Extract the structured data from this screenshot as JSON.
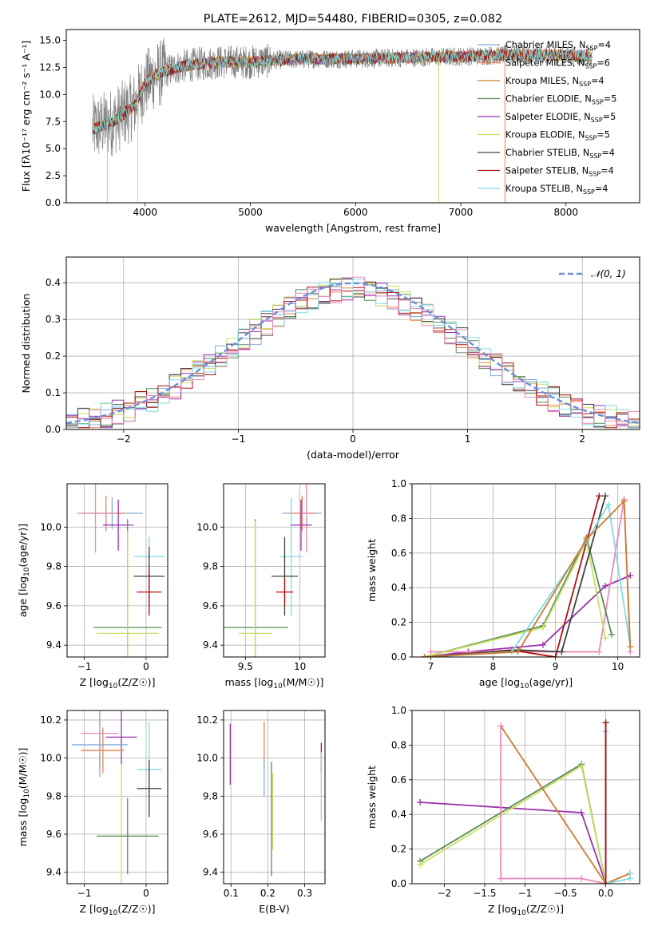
{
  "chart_data": [
    {
      "id": "spectrum",
      "type": "line",
      "title": "PLATE=2612, MJD=54480, FIBERID=0305, z=0.082",
      "xlabel": "wavelength [Angstrom, rest frame]",
      "ylabel": "Flux [fλ10⁻¹⁷ erg cm⁻² s⁻¹ A⁻¹]",
      "xlim": [
        3250,
        8700
      ],
      "ylim": [
        0,
        16
      ],
      "xticks": [
        4000,
        5000,
        6000,
        7000,
        8000
      ],
      "yticks": [
        0.0,
        2.5,
        5.0,
        7.5,
        10.0,
        12.5,
        15.0
      ],
      "grid": false,
      "legend_position": "top-right",
      "observed": {
        "color": "#808080",
        "x_range": [
          3500,
          8250
        ],
        "continuum": [
          [
            3500,
            6.8
          ],
          [
            3700,
            7.5
          ],
          [
            3900,
            9.0
          ],
          [
            4000,
            11.0
          ],
          [
            4100,
            11.8
          ],
          [
            4300,
            12.5
          ],
          [
            4500,
            12.8
          ],
          [
            4700,
            13.0
          ],
          [
            5000,
            13.0
          ],
          [
            5300,
            13.2
          ],
          [
            5600,
            13.3
          ],
          [
            6000,
            13.3
          ],
          [
            6500,
            13.4
          ],
          [
            7000,
            13.5
          ],
          [
            7500,
            13.7
          ],
          [
            8000,
            13.6
          ],
          [
            8250,
            13.5
          ]
        ]
      },
      "series": [
        {
          "name": "Chabrier MILES, N_SSP=4",
          "label_pre": "Chabrier MILES, N",
          "label_sub": "SSP",
          "label_post": "=4",
          "color": "#7faedc"
        },
        {
          "name": "Salpeter MILES, N_SSP=6",
          "label_pre": "Salpeter MILES, N",
          "label_sub": "SSP",
          "label_post": "=6",
          "color": "#ee7f4f"
        },
        {
          "name": "Kroupa MILES, N_SSP=4",
          "label_pre": "Kroupa MILES, N",
          "label_sub": "SSP",
          "label_post": "=4",
          "color": "#cc7a30"
        },
        {
          "name": "Chabrier ELODIE, N_SSP=5",
          "label_pre": "Chabrier ELODIE, N",
          "label_sub": "SSP",
          "label_post": "=5",
          "color": "#5a8a5a"
        },
        {
          "name": "Salpeter ELODIE, N_SSP=5",
          "label_pre": "Salpeter ELODIE, N",
          "label_sub": "SSP",
          "label_post": "=5",
          "color": "#9b30b0"
        },
        {
          "name": "Kroupa ELODIE, N_SSP=5",
          "label_pre": "Kroupa ELODIE, N",
          "label_sub": "SSP",
          "label_post": "=5",
          "color": "#c8e060"
        },
        {
          "name": "Chabrier STELIB, N_SSP=4",
          "label_pre": "Chabrier STELIB, N",
          "label_sub": "SSP",
          "label_post": "=4",
          "color": "#404040"
        },
        {
          "name": "Salpeter STELIB, N_SSP=4",
          "label_pre": "Salpeter STELIB, N",
          "label_sub": "SSP",
          "label_post": "=4",
          "color": "#b01010"
        },
        {
          "name": "Kroupa STELIB, N_SSP=4",
          "label_pre": "Kroupa STELIB, N",
          "label_sub": "SSP",
          "label_post": "=4",
          "color": "#80dce0"
        }
      ],
      "absorption_dips": [
        {
          "x": 3640,
          "y_min": 0.0,
          "color": "#80dce0"
        },
        {
          "x": 3930,
          "y_min": 0.0,
          "color": "#c8e060"
        },
        {
          "x": 6790,
          "y_min": 0.0,
          "color": "#c8e060"
        },
        {
          "x": 7420,
          "y_min": 0.0,
          "color": "#ee7f4f"
        }
      ]
    },
    {
      "id": "residuals",
      "type": "histogram",
      "xlabel": "(data-model)/error",
      "ylabel": "Normed distribution",
      "xlim": [
        -2.5,
        2.5
      ],
      "ylim": [
        0,
        0.47
      ],
      "xticks": [
        -2,
        -1,
        0,
        1,
        2
      ],
      "yticks": [
        0.0,
        0.1,
        0.2,
        0.3,
        0.4
      ],
      "grid": true,
      "legend": {
        "label": "𝒩(0, 1)",
        "position": "top-right"
      },
      "bin_width": 0.1,
      "gaussian": {
        "mean": 0,
        "sigma": 1,
        "color": "#6a8fd8"
      },
      "histogram_colors": [
        "#7faedc",
        "#ee7f4f",
        "#5a8a5a",
        "#9b30b0",
        "#c8e060",
        "#404040",
        "#b01010",
        "#80dce0",
        "#e989b8"
      ]
    },
    {
      "id": "age-vs-Z",
      "type": "errorbar",
      "xlabel_pre": "Z [log",
      "xlabel_sub": "10",
      "xlabel_post": "(Z/Z☉)]",
      "ylabel_pre": "age  [log",
      "ylabel_sub": "10",
      "ylabel_post": "(age/yr)]",
      "xlim": [
        -1.28,
        0.35
      ],
      "ylim": [
        9.34,
        10.22
      ],
      "xticks": [
        -1,
        0
      ],
      "yticks": [
        9.4,
        9.6,
        9.8,
        10.0
      ],
      "grid": true,
      "points": [
        {
          "x": -0.55,
          "y": 10.07,
          "xerr": 0.5,
          "yerr": 0.08,
          "color": "#7faedc"
        },
        {
          "x": -0.65,
          "y": 10.07,
          "xerr": 0.3,
          "yerr": 0.09,
          "color": "#ee7f4f"
        },
        {
          "x": -0.82,
          "y": 10.07,
          "xerr": 0.3,
          "yerr": 0.2,
          "color": "#e989b8"
        },
        {
          "x": -0.45,
          "y": 10.01,
          "xerr": 0.25,
          "yerr": 0.13,
          "color": "#9b30b0"
        },
        {
          "x": -0.3,
          "y": 9.49,
          "xerr": 0.55,
          "yerr": 0.55,
          "color": "#5a8a5a"
        },
        {
          "x": -0.3,
          "y": 9.46,
          "xerr": 0.5,
          "yerr": 0.52,
          "color": "#c8e060"
        },
        {
          "x": 0.05,
          "y": 9.85,
          "xerr": 0.25,
          "yerr": 0.1,
          "color": "#80dce0"
        },
        {
          "x": 0.05,
          "y": 9.75,
          "xerr": 0.25,
          "yerr": 0.15,
          "color": "#404040"
        },
        {
          "x": 0.05,
          "y": 9.67,
          "xerr": 0.2,
          "yerr": 0.12,
          "color": "#b01010"
        }
      ]
    },
    {
      "id": "age-vs-mass",
      "type": "errorbar",
      "xlabel_pre": "mass [log",
      "xlabel_sub": "10",
      "xlabel_post": "(M/M☉)]",
      "xlim": [
        9.3,
        10.23
      ],
      "ylim": [
        9.34,
        10.22
      ],
      "xticks": [
        9.5,
        10.0
      ],
      "yticks": [
        9.4,
        9.6,
        9.8,
        10.0
      ],
      "grid": true,
      "points": [
        {
          "x": 10.02,
          "y": 10.07,
          "xerr": 0.18,
          "yerr": 0.08,
          "color": "#7faedc"
        },
        {
          "x": 10.02,
          "y": 10.07,
          "xerr": 0.12,
          "yerr": 0.09,
          "color": "#ee7f4f"
        },
        {
          "x": 10.06,
          "y": 10.07,
          "xerr": 0.05,
          "yerr": 0.2,
          "color": "#e989b8"
        },
        {
          "x": 10.01,
          "y": 10.01,
          "xerr": 0.1,
          "yerr": 0.13,
          "color": "#9b30b0"
        },
        {
          "x": 9.59,
          "y": 9.49,
          "xerr": 0.3,
          "yerr": 0.55,
          "color": "#5a8a5a"
        },
        {
          "x": 9.59,
          "y": 9.46,
          "xerr": 0.15,
          "yerr": 0.57,
          "color": "#c8e060"
        },
        {
          "x": 9.92,
          "y": 9.85,
          "xerr": 0.1,
          "yerr": 0.3,
          "color": "#80dce0"
        },
        {
          "x": 9.86,
          "y": 9.75,
          "xerr": 0.12,
          "yerr": 0.2,
          "color": "#404040"
        },
        {
          "x": 9.86,
          "y": 9.67,
          "xerr": 0.08,
          "yerr": 0.07,
          "color": "#b01010"
        }
      ]
    },
    {
      "id": "massweight-vs-age",
      "type": "line",
      "xlabel_pre": "age  [log",
      "xlabel_sub": "10",
      "xlabel_post": "(age/yr)]",
      "ylabel": "mass weight",
      "xlim": [
        6.7,
        10.35
      ],
      "ylim": [
        0,
        1
      ],
      "xticks": [
        7,
        8,
        9,
        10
      ],
      "yticks": [
        0.0,
        0.2,
        0.4,
        0.6,
        0.8,
        1.0
      ],
      "grid": true,
      "series": [
        {
          "color": "#9b30b0",
          "x": [
            6.9,
            7.6,
            8.8,
            9.8,
            10.2
          ],
          "y": [
            0.0,
            0.03,
            0.07,
            0.41,
            0.47
          ]
        },
        {
          "color": "#e989b8",
          "x": [
            7.0,
            9.7,
            10.1,
            10.2
          ],
          "y": [
            0.03,
            0.03,
            0.91,
            0.03
          ]
        },
        {
          "color": "#5a8a5a",
          "x": [
            6.9,
            8.8,
            9.5,
            9.9
          ],
          "y": [
            0.0,
            0.18,
            0.69,
            0.13
          ]
        },
        {
          "color": "#c8e060",
          "x": [
            6.9,
            8.8,
            9.5,
            9.8
          ],
          "y": [
            0.0,
            0.17,
            0.67,
            0.11
          ]
        },
        {
          "color": "#b01010",
          "x": [
            6.9,
            8.3,
            9.0,
            9.7
          ],
          "y": [
            0.0,
            0.04,
            0.0,
            0.93
          ]
        },
        {
          "color": "#404040",
          "x": [
            6.9,
            8.4,
            9.1,
            9.8
          ],
          "y": [
            0.0,
            0.04,
            0.03,
            0.93
          ]
        },
        {
          "color": "#80dce0",
          "x": [
            6.9,
            8.3,
            9.5,
            9.85,
            10.2
          ],
          "y": [
            0.0,
            0.03,
            0.67,
            0.88,
            0.06
          ]
        },
        {
          "color": "#cc7a30",
          "x": [
            6.9,
            8.4,
            9.5,
            10.1,
            10.2
          ],
          "y": [
            0.0,
            0.03,
            0.68,
            0.9,
            0.06
          ]
        }
      ]
    },
    {
      "id": "mass-vs-Z",
      "type": "errorbar",
      "xlabel_pre": "Z [log",
      "xlabel_sub": "10",
      "xlabel_post": "(Z/Z☉)]",
      "ylabel_pre": "mass [log",
      "ylabel_sub": "10",
      "ylabel_post": "(M/M☉)]",
      "xlim": [
        -1.28,
        0.35
      ],
      "ylim": [
        9.34,
        10.25
      ],
      "xticks": [
        -1,
        0
      ],
      "yticks": [
        9.4,
        9.6,
        9.8,
        10.0,
        10.2
      ],
      "grid": true,
      "points": [
        {
          "x": -0.75,
          "y": 10.13,
          "xerr": 0.3,
          "yerr": 0.18,
          "color": "#e989b8"
        },
        {
          "x": -0.4,
          "y": 10.11,
          "xerr": 0.25,
          "yerr": 0.15,
          "color": "#9b30b0"
        },
        {
          "x": -0.75,
          "y": 10.07,
          "xerr": 0.45,
          "yerr": 0.17,
          "color": "#7faedc"
        },
        {
          "x": -0.7,
          "y": 10.04,
          "xerr": 0.35,
          "yerr": 0.12,
          "color": "#ee7f4f"
        },
        {
          "x": 0.05,
          "y": 9.94,
          "xerr": 0.2,
          "yerr": 0.25,
          "color": "#80dce0"
        },
        {
          "x": 0.05,
          "y": 9.84,
          "xerr": 0.2,
          "yerr": 0.15,
          "color": "#404040"
        },
        {
          "x": -0.4,
          "y": 9.59,
          "xerr": 0.4,
          "yerr": 0.38,
          "color": "#c8e060"
        },
        {
          "x": -0.3,
          "y": 9.59,
          "xerr": 0.5,
          "yerr": 0.2,
          "color": "#5a8a5a"
        }
      ]
    },
    {
      "id": "mass-vs-EBV",
      "type": "errorbar",
      "xlabel": "E(B-V)",
      "xlim": [
        0.08,
        0.355
      ],
      "ylim": [
        9.34,
        10.25
      ],
      "xticks": [
        0.1,
        0.2,
        0.3
      ],
      "yticks": [
        9.4,
        9.6,
        9.8,
        10.0,
        10.2
      ],
      "grid": true,
      "points": [
        {
          "x": 0.098,
          "y": 10.02,
          "xerr": 0,
          "yerr": 0.16,
          "color": "#9b30b0"
        },
        {
          "x": 0.19,
          "y": 10.07,
          "xerr": 0,
          "yerr": 0.12,
          "color": "#ee7f4f"
        },
        {
          "x": 0.19,
          "y": 9.9,
          "xerr": 0,
          "yerr": 0.1,
          "color": "#7faedc"
        },
        {
          "x": 0.21,
          "y": 9.68,
          "xerr": 0,
          "yerr": 0.3,
          "color": "#5a8a5a"
        },
        {
          "x": 0.213,
          "y": 9.72,
          "xerr": 0,
          "yerr": 0.2,
          "color": "#c8e060"
        },
        {
          "x": 0.345,
          "y": 10.0,
          "xerr": 0,
          "yerr": 0.08,
          "color": "#b01010"
        },
        {
          "x": 0.345,
          "y": 9.85,
          "xerr": 0,
          "yerr": 0.18,
          "color": "#80dce0"
        }
      ]
    },
    {
      "id": "massweight-vs-Z",
      "type": "line",
      "xlabel_pre": "Z [log",
      "xlabel_sub": "10",
      "xlabel_post": "(Z/Z☉)]",
      "ylabel": "mass weight",
      "xlim": [
        -2.4,
        0.42
      ],
      "ylim": [
        0,
        1
      ],
      "xticks": [
        -2.0,
        -1.5,
        -1.0,
        -0.5,
        0.0
      ],
      "yticks": [
        0.0,
        0.2,
        0.4,
        0.6,
        0.8,
        1.0
      ],
      "grid": true,
      "series": [
        {
          "color": "#9b30b0",
          "x": [
            -2.3,
            -0.3,
            0.0
          ],
          "y": [
            0.47,
            0.41,
            0.0
          ]
        },
        {
          "color": "#5a8a5a",
          "x": [
            -2.3,
            -0.3,
            0.0
          ],
          "y": [
            0.13,
            0.69,
            0.0
          ]
        },
        {
          "color": "#c8e060",
          "x": [
            -2.3,
            -0.3,
            0.0
          ],
          "y": [
            0.11,
            0.68,
            0.0
          ]
        },
        {
          "color": "#cc7a30",
          "x": [
            -1.3,
            0.0,
            0.3
          ],
          "y": [
            0.91,
            0.0,
            0.06
          ]
        },
        {
          "color": "#e989b8",
          "x": [
            -1.3,
            -1.3,
            -0.3,
            0.0
          ],
          "y": [
            0.91,
            0.03,
            0.03,
            0.0
          ]
        },
        {
          "color": "#80dce0",
          "x": [
            0.0,
            0.0,
            0.3,
            0.3
          ],
          "y": [
            0.88,
            0.0,
            0.03,
            0.06
          ]
        },
        {
          "color": "#404040",
          "x": [
            0.0,
            0.0
          ],
          "y": [
            0.93,
            0.0
          ]
        },
        {
          "color": "#b01010",
          "x": [
            0.0,
            0.0
          ],
          "y": [
            0.93,
            0.0
          ]
        }
      ]
    }
  ]
}
